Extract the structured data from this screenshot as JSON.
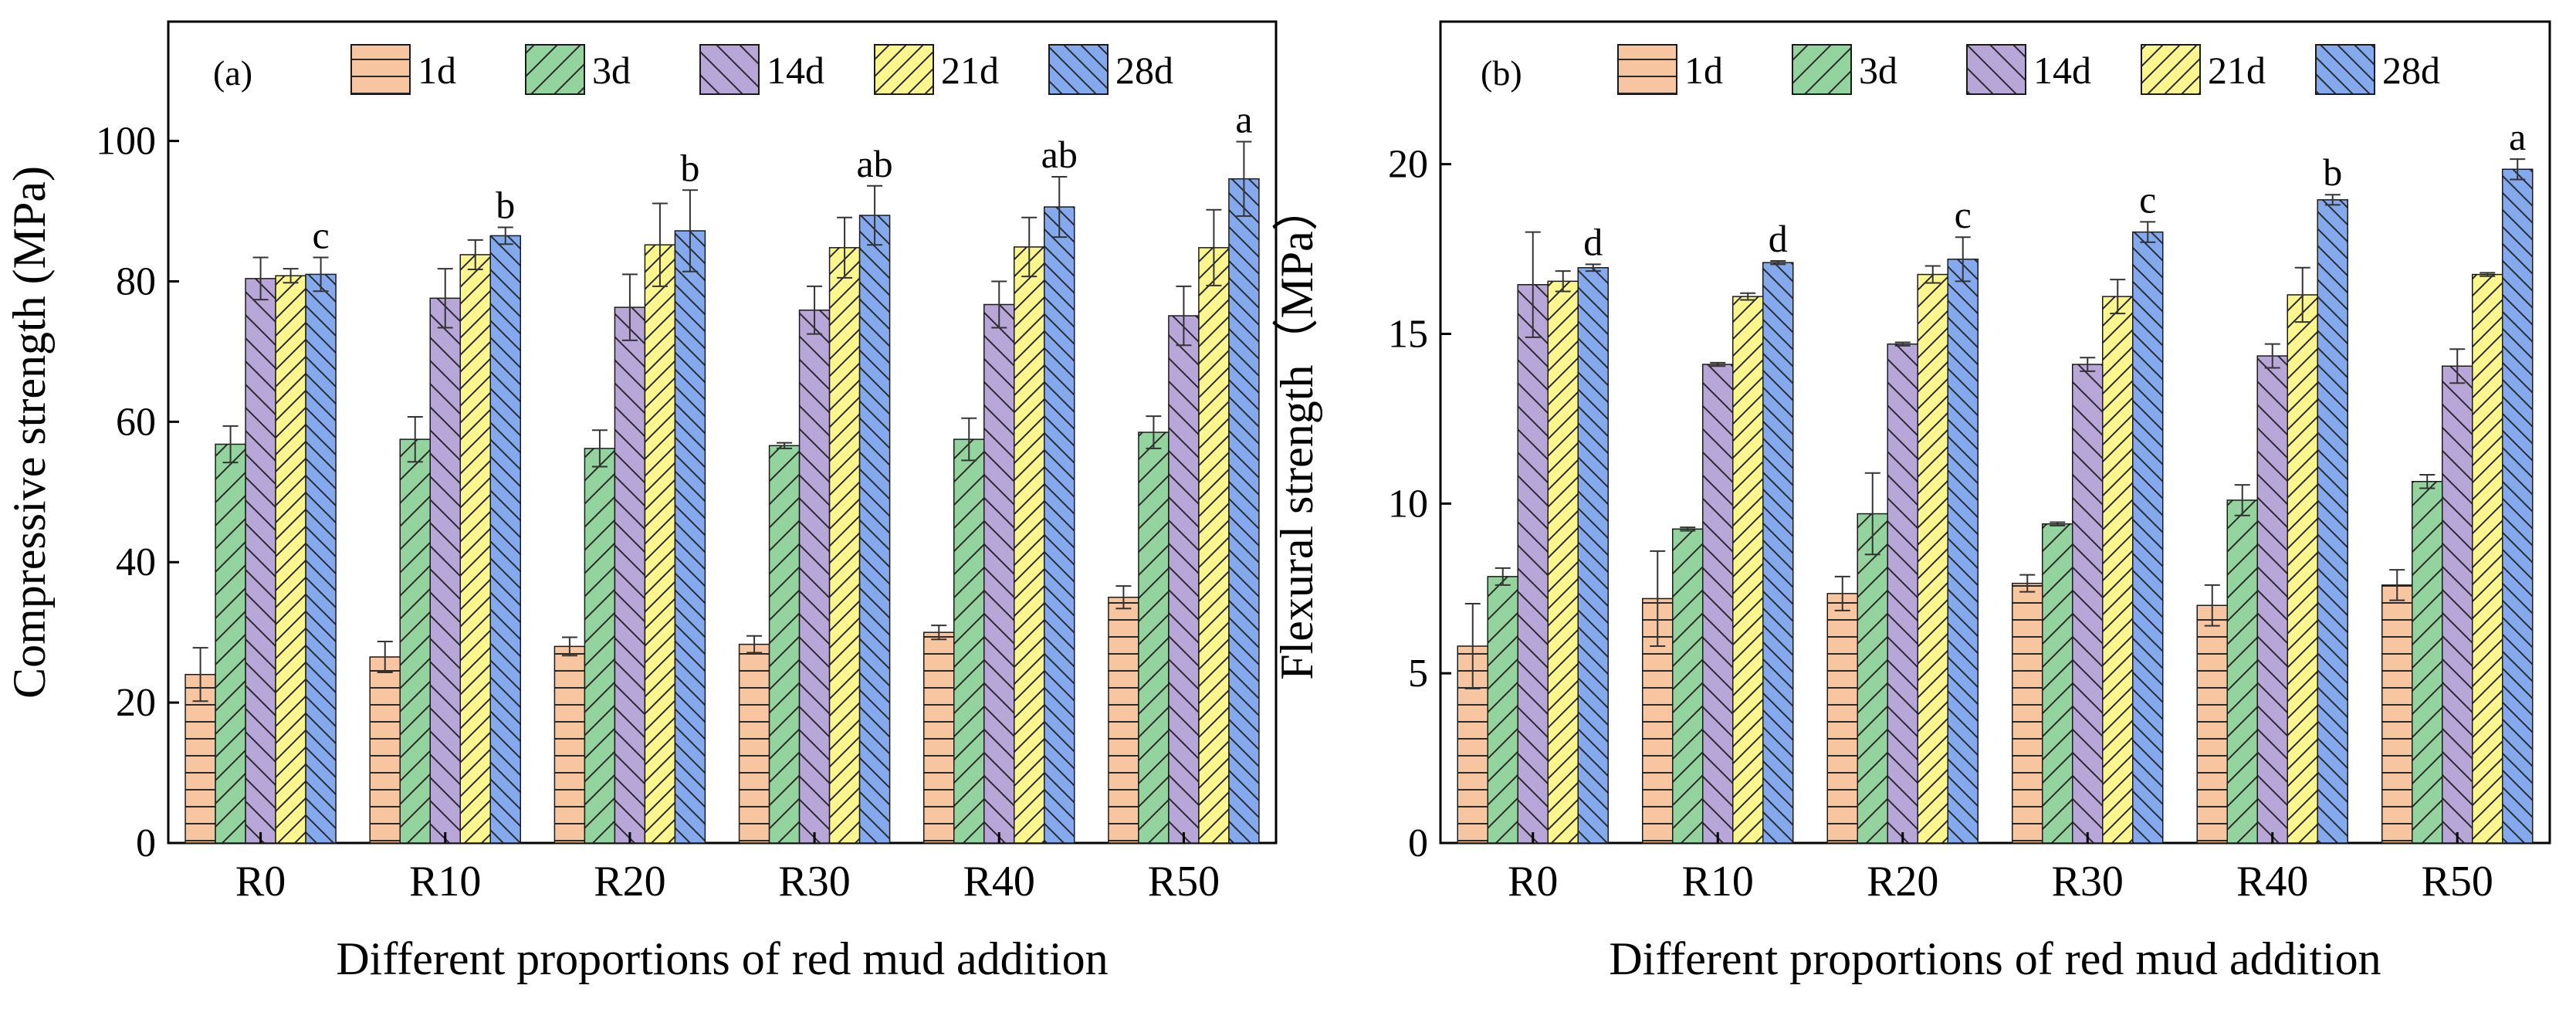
{
  "colors": {
    "1d": "#f7c59f",
    "3d": "#93d39d",
    "14d": "#b9a6d8",
    "21d": "#fbf68d",
    "28d": "#84a9ec",
    "axis": "#000000",
    "error_bar": "#333333"
  },
  "chart_data": [
    {
      "type": "bar",
      "panel_label": "(a)",
      "xlabel": "Different proportions of red mud addition",
      "ylabel": "Compressive strength (MPa)",
      "ylim": [
        0,
        117
      ],
      "yticks": [
        0,
        20,
        40,
        60,
        80,
        100
      ],
      "legend_position": "top",
      "categories": [
        "R0",
        "R10",
        "R20",
        "R30",
        "R40",
        "R50"
      ],
      "series": [
        {
          "name": "1d",
          "values": [
            24.0,
            26.5,
            28.0,
            28.3,
            30.0,
            35.0
          ],
          "errors": [
            3.8,
            2.2,
            1.3,
            1.2,
            1.0,
            1.6
          ]
        },
        {
          "name": "3d",
          "values": [
            56.8,
            57.5,
            56.2,
            56.6,
            57.5,
            58.5
          ],
          "errors": [
            2.6,
            3.2,
            2.6,
            0.4,
            3.0,
            2.3
          ]
        },
        {
          "name": "14d",
          "values": [
            80.4,
            77.6,
            76.3,
            75.9,
            76.7,
            75.1
          ],
          "errors": [
            3.0,
            4.2,
            4.7,
            3.4,
            3.3,
            4.2
          ]
        },
        {
          "name": "21d",
          "values": [
            80.8,
            83.8,
            85.2,
            84.8,
            84.9,
            84.8
          ],
          "errors": [
            1.0,
            2.1,
            5.9,
            4.3,
            4.2,
            5.4
          ]
        },
        {
          "name": "28d",
          "values": [
            81.0,
            86.5,
            87.2,
            89.4,
            90.6,
            94.6
          ],
          "errors": [
            2.4,
            1.2,
            5.8,
            4.2,
            4.3,
            5.3
          ]
        }
      ],
      "significance": [
        "c",
        "b",
        "b",
        "ab",
        "ab",
        "a"
      ]
    },
    {
      "type": "bar",
      "panel_label": "(b)",
      "xlabel": "Different proportions of red mud addition",
      "ylabel": "Flexural strength（MPa）",
      "ylim": [
        0,
        24.2
      ],
      "yticks": [
        0,
        5,
        10,
        15,
        20
      ],
      "legend_position": "top",
      "categories": [
        "R0",
        "R10",
        "R20",
        "R30",
        "R40",
        "R50"
      ],
      "series": [
        {
          "name": "1d",
          "values": [
            5.8,
            7.2,
            7.35,
            7.65,
            7.0,
            7.6
          ],
          "errors": [
            1.25,
            1.4,
            0.5,
            0.25,
            0.6,
            0.45
          ]
        },
        {
          "name": "3d",
          "values": [
            7.85,
            9.25,
            9.7,
            9.4,
            10.1,
            10.65
          ],
          "errors": [
            0.25,
            0.05,
            1.2,
            0.05,
            0.45,
            0.2
          ]
        },
        {
          "name": "14d",
          "values": [
            16.45,
            14.1,
            14.7,
            14.1,
            14.35,
            14.05
          ],
          "errors": [
            1.55,
            0.05,
            0.05,
            0.2,
            0.35,
            0.5
          ]
        },
        {
          "name": "21d",
          "values": [
            16.55,
            16.1,
            16.75,
            16.1,
            16.15,
            16.75
          ],
          "errors": [
            0.3,
            0.1,
            0.25,
            0.5,
            0.8,
            0.05
          ]
        },
        {
          "name": "28d",
          "values": [
            16.95,
            17.1,
            17.2,
            18.0,
            18.95,
            19.85
          ],
          "errors": [
            0.1,
            0.05,
            0.65,
            0.3,
            0.15,
            0.3
          ]
        }
      ],
      "significance": [
        "d",
        "d",
        "c",
        "c",
        "b",
        "a"
      ]
    }
  ]
}
